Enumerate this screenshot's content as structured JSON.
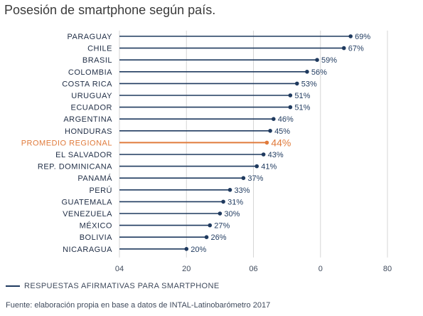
{
  "chart_data": {
    "type": "bar",
    "title": "Posesión de smartphone según país.",
    "categories": [
      "PARAGUAY",
      "CHILE",
      "BRASIL",
      "COLOMBIA",
      "COSTA RICA",
      "URUGUAY",
      "ECUADOR",
      "ARGENTINA",
      "HONDURAS",
      "PROMEDIO REGIONAL",
      "EL SALVADOR",
      "REP. DOMINICANA",
      "PANAMÁ",
      "PERÚ",
      "GUATEMALA",
      "VENEZUELA",
      "MÉXICO",
      "BOLIVIA",
      "NICARAGUA"
    ],
    "values": [
      69,
      67,
      59,
      56,
      53,
      51,
      51,
      46,
      45,
      44,
      43,
      41,
      37,
      33,
      31,
      30,
      27,
      26,
      20
    ],
    "value_labels": [
      "69%",
      "67%",
      "59%",
      "56%",
      "53%",
      "51%",
      "51%",
      "46%",
      "45%",
      "44%",
      "43%",
      "41%",
      "37%",
      "33%",
      "31%",
      "30%",
      "27%",
      "26%",
      "20%"
    ],
    "highlight_category": "PROMEDIO REGIONAL",
    "xlim": [
      0,
      80
    ],
    "xtick_labels": [
      "04",
      "20",
      "06",
      "0",
      "80"
    ],
    "legend": "RESPUESTAS AFIRMATIVAS PARA SMARTPHONE",
    "source": "Fuente: elaboración propia en base a datos de INTAL-Latinobarómetro 2017",
    "colors": {
      "series": "#1f3a5f",
      "highlight": "#e07b3c",
      "grid": "#d6d6d6"
    }
  }
}
